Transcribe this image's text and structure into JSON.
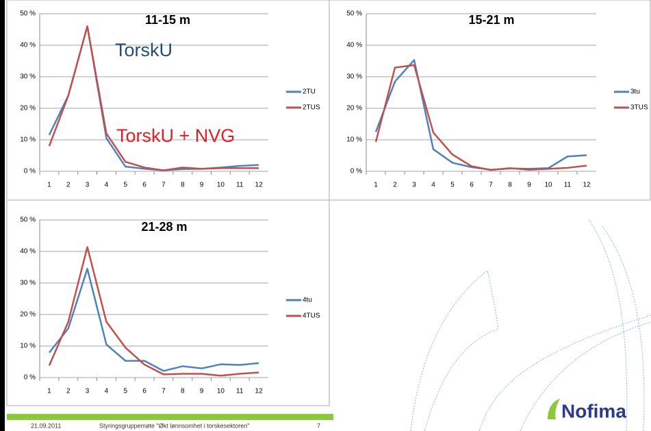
{
  "chart_data": [
    {
      "type": "line",
      "title": "11-15 m",
      "annotations": [
        "TorskU",
        "TorskU + NVG"
      ],
      "categories": [
        1,
        2,
        3,
        4,
        5,
        6,
        7,
        8,
        9,
        10,
        11,
        12
      ],
      "series": [
        {
          "name": "2TU",
          "color": "#4f81bd",
          "values": [
            11.5,
            24,
            46,
            10.5,
            1.5,
            0.8,
            0.3,
            0.7,
            0.8,
            1.2,
            1.7,
            2.0
          ]
        },
        {
          "name": "2TUS",
          "color": "#c0504d",
          "values": [
            8,
            24,
            46,
            12,
            3,
            1.2,
            0.3,
            1.2,
            0.8,
            1.0,
            1.0,
            1.0
          ]
        }
      ],
      "ylim": [
        0,
        50
      ],
      "yticks": [
        {
          "value": 0,
          "label": "0 %"
        },
        {
          "value": 10,
          "label": "10 %"
        },
        {
          "value": 20,
          "label": "20 %"
        },
        {
          "value": 30,
          "label": "30 %"
        },
        {
          "value": 40,
          "label": "40 %"
        },
        {
          "value": 50,
          "label": "50 %"
        }
      ],
      "grid": true,
      "legend": "right"
    },
    {
      "type": "line",
      "title": "15-21 m",
      "categories": [
        1,
        2,
        3,
        4,
        5,
        6,
        7,
        8,
        9,
        10,
        11,
        12
      ],
      "series": [
        {
          "name": "3tu",
          "color": "#4f81bd",
          "values": [
            12.5,
            28.5,
            35.3,
            7,
            2.7,
            1.3,
            0.5,
            0.9,
            0.8,
            1.0,
            4.7,
            5.1
          ]
        },
        {
          "name": "3TUS",
          "color": "#c0504d",
          "values": [
            9.3,
            32.9,
            33.7,
            12.3,
            5.3,
            1.6,
            0.4,
            1.0,
            0.5,
            0.8,
            1.1,
            1.8
          ]
        }
      ],
      "ylim": [
        0,
        50
      ],
      "yticks": [
        {
          "value": 0,
          "label": "0 %"
        },
        {
          "value": 10,
          "label": "10 %"
        },
        {
          "value": 20,
          "label": "20 %"
        },
        {
          "value": 30,
          "label": "30 %"
        },
        {
          "value": 40,
          "label": "40 %"
        },
        {
          "value": 50,
          "label": "50 %"
        }
      ],
      "grid": true,
      "legend": "right"
    },
    {
      "type": "line",
      "title": "21-28 m",
      "categories": [
        1,
        2,
        3,
        4,
        5,
        6,
        7,
        8,
        9,
        10,
        11,
        12
      ],
      "series": [
        {
          "name": "4tu",
          "color": "#4f81bd",
          "values": [
            7.9,
            15.6,
            34.5,
            10.5,
            5.3,
            5.3,
            2.1,
            3.6,
            2.9,
            4.2,
            4.0,
            4.6
          ]
        },
        {
          "name": "4TUS",
          "color": "#c0504d",
          "values": [
            3.8,
            17.7,
            41.4,
            17.7,
            9.5,
            4.1,
            1.0,
            1.2,
            1.2,
            0.6,
            1.2,
            1.6
          ]
        }
      ],
      "ylim": [
        0,
        50
      ],
      "yticks": [
        {
          "value": 0,
          "label": "0 %"
        },
        {
          "value": 10,
          "label": "10 %"
        },
        {
          "value": 20,
          "label": "20 %"
        },
        {
          "value": 30,
          "label": "30 %"
        },
        {
          "value": 40,
          "label": "40 %"
        },
        {
          "value": 50,
          "label": "50 %"
        }
      ],
      "grid": true,
      "legend": "right"
    }
  ],
  "footer": {
    "date": "21.09.2011",
    "text": "Styringsgruppemøte \"Økt lønnsomhet i torskesektoren\"",
    "page": "7"
  },
  "logo": "Nofima"
}
